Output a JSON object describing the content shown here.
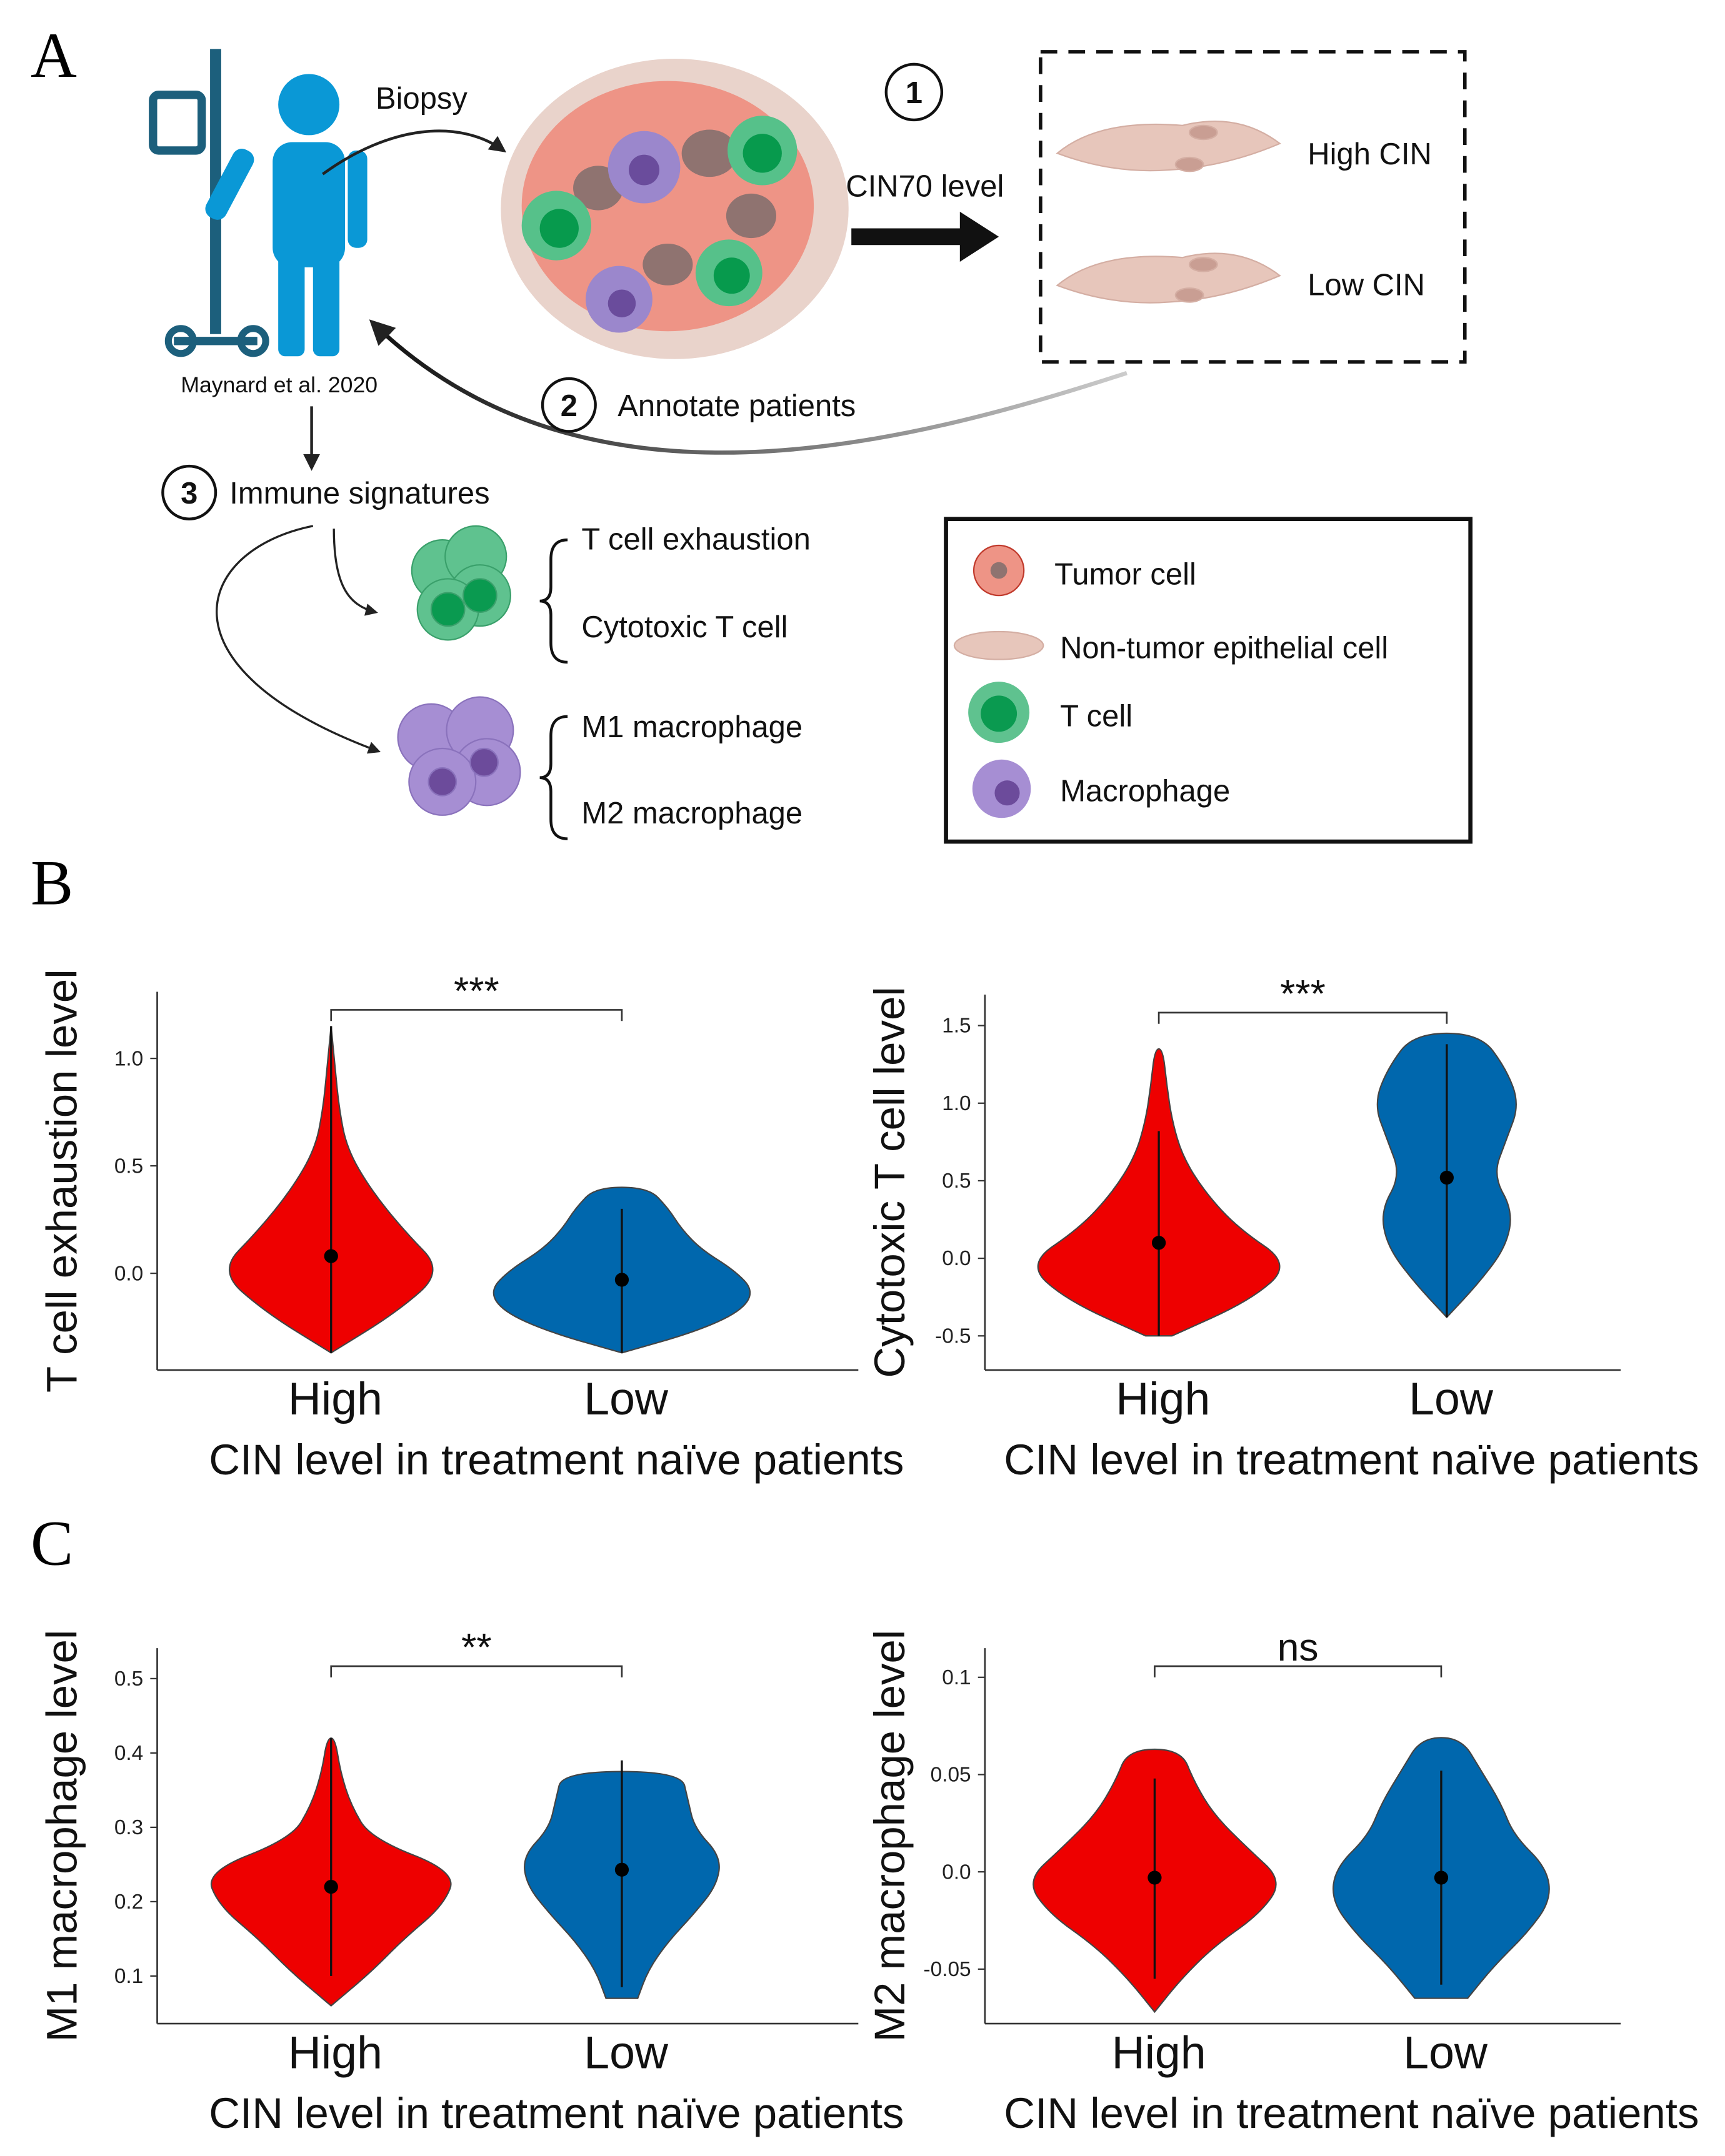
{
  "panels": {
    "a": "A",
    "b": "B",
    "c": "C"
  },
  "diagram": {
    "biopsy": "Biopsy",
    "step1": "1",
    "cin70": "CIN70 level",
    "high_cin": "High CIN",
    "low_cin": "Low CIN",
    "source": "Maynard et al. 2020",
    "step2": "2",
    "annotate": "Annotate patients",
    "step3": "3",
    "immune": "Immune signatures",
    "tcell_sigs": [
      "T cell exhaustion",
      "Cytotoxic T cell"
    ],
    "mac_sigs": [
      "M1 macrophage",
      "M2 macrophage"
    ],
    "legend": [
      "Tumor cell",
      "Non-tumor epithelial cell",
      "T cell",
      "Macrophage"
    ]
  },
  "chart_data": [
    {
      "type": "violin",
      "y_label": "T cell exhaustion level",
      "x_label": "CIN level in treatment naïve patients",
      "categories": [
        "High",
        "Low"
      ],
      "colors": [
        "#ee0000",
        "#0067ad"
      ],
      "significance": "***",
      "ylim": [
        -0.45,
        1.31
      ],
      "yticks": [
        {
          "value": 0,
          "label": "0.0"
        },
        0.5,
        {
          "value": 1,
          "label": "1.0"
        }
      ],
      "violins": [
        {
          "extent": [
            -0.37,
            1.15
          ],
          "whisker": [
            -0.37,
            1.15
          ],
          "median": 0.08,
          "density": [
            0,
            0.5,
            0.85,
            0.55,
            0.3,
            0.12,
            0.06,
            0.03,
            0
          ]
        },
        {
          "extent": [
            -0.37,
            0.4
          ],
          "whisker": [
            -0.37,
            0.3
          ],
          "median": -0.03,
          "density": [
            0,
            0.55,
            0.9,
            1.0,
            0.85,
            0.6,
            0.45,
            0.35,
            0.2
          ]
        }
      ]
    },
    {
      "type": "violin",
      "y_label": "Cytotoxic T cell level",
      "x_label": "CIN level in treatment naïve patients",
      "categories": [
        "High",
        "Low"
      ],
      "colors": [
        "#ee0000",
        "#0067ad"
      ],
      "significance": "***",
      "ylim": [
        -0.72,
        1.7
      ],
      "yticks": [
        -0.5,
        {
          "value": 0,
          "label": "0.0"
        },
        0.5,
        {
          "value": 1,
          "label": "1.0"
        },
        1.5
      ],
      "violins": [
        {
          "extent": [
            -0.5,
            1.35
          ],
          "whisker": [
            -0.5,
            0.82
          ],
          "median": 0.1,
          "density": [
            0.1,
            0.7,
            1.0,
            0.6,
            0.35,
            0.18,
            0.1,
            0.06,
            0.03
          ]
        },
        {
          "extent": [
            -0.38,
            1.45
          ],
          "whisker": [
            -0.38,
            1.38
          ],
          "median": 0.52,
          "density": [
            0,
            0.25,
            0.45,
            0.5,
            0.35,
            0.45,
            0.55,
            0.45,
            0.25
          ]
        }
      ]
    },
    {
      "type": "violin",
      "y_label": "M1 macrophage level",
      "x_label": "CIN level in treatment naïve patients",
      "categories": [
        "High",
        "Low"
      ],
      "colors": [
        "#ee0000",
        "#0067ad"
      ],
      "significance": "**",
      "ylim": [
        0.036,
        0.541
      ],
      "yticks": [
        0.1,
        0.2,
        0.3,
        0.4,
        0.5
      ],
      "violins": [
        {
          "extent": [
            0.06,
            0.42
          ],
          "whisker": [
            0.1,
            0.42
          ],
          "median": 0.22,
          "density": [
            0,
            0.3,
            0.55,
            0.85,
            0.95,
            0.3,
            0.15,
            0.07,
            0.03
          ]
        },
        {
          "extent": [
            0.07,
            0.375
          ],
          "whisker": [
            0.085,
            0.39
          ],
          "median": 0.243,
          "density": [
            0.12,
            0.2,
            0.35,
            0.55,
            0.72,
            0.75,
            0.55,
            0.5,
            0.45
          ]
        }
      ]
    },
    {
      "type": "violin",
      "y_label": "M2 macrophage level",
      "x_label": "CIN level in treatment naïve patients",
      "categories": [
        "High",
        "Low"
      ],
      "colors": [
        "#ee0000",
        "#0067ad"
      ],
      "significance": "ns",
      "ylim": [
        -0.078,
        0.115
      ],
      "yticks": [
        -0.05,
        {
          "value": 0,
          "label": "0.0"
        },
        0.05,
        0.1
      ],
      "violins": [
        {
          "extent": [
            -0.072,
            0.063
          ],
          "whisker": [
            -0.055,
            0.048
          ],
          "median": -0.003,
          "density": [
            0,
            0.2,
            0.45,
            0.8,
            0.97,
            0.7,
            0.45,
            0.3,
            0.2
          ]
        },
        {
          "extent": [
            -0.065,
            0.069
          ],
          "whisker": [
            -0.058,
            0.052
          ],
          "median": -0.003,
          "density": [
            0.2,
            0.4,
            0.65,
            0.83,
            0.8,
            0.55,
            0.45,
            0.3,
            0.15
          ]
        }
      ]
    }
  ]
}
